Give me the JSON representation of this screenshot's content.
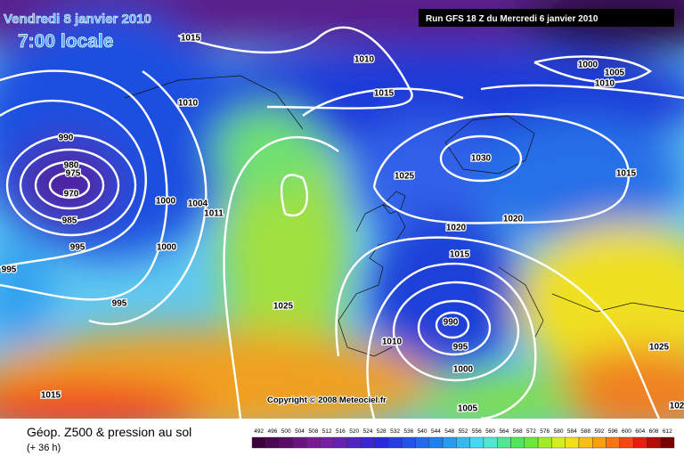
{
  "header": {
    "date": "Vendredi 8 janvier 2010",
    "time": "7:00 locale",
    "run": "Run GFS 18 Z du Mercredi 6 janvier 2010"
  },
  "map": {
    "isobar_labels": [
      1015,
      1010,
      1000,
      1005,
      1010,
      1010,
      1015,
      990,
      980,
      975,
      970,
      1030,
      1015,
      1025,
      1000,
      1004,
      1011,
      985,
      1020,
      1020,
      995,
      1000,
      1015,
      995,
      995,
      1025,
      990,
      995,
      1010,
      1000,
      1025,
      1015,
      1005,
      102
    ],
    "copyright": "Copyright © 2008 Meteociel.fr"
  },
  "legend": {
    "title": "Géop. Z500 & pression au sol",
    "lead_time": "(+ 36 h)",
    "scale": [
      492,
      496,
      500,
      504,
      508,
      512,
      516,
      520,
      524,
      528,
      532,
      536,
      540,
      544,
      548,
      552,
      556,
      560,
      564,
      568,
      572,
      576,
      580,
      584,
      588,
      592,
      596,
      600,
      604,
      608,
      612
    ]
  }
}
